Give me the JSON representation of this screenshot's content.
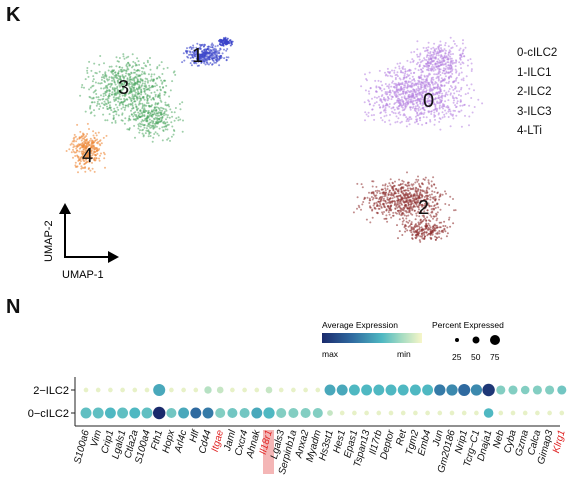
{
  "panel_k": {
    "letter": "K",
    "cluster_labels": [
      "1",
      "3",
      "4",
      "0",
      "2"
    ],
    "legend": [
      "0-cILC2",
      "1-ILC1",
      "2-ILC2",
      "3-ILC3",
      "4-LTi"
    ],
    "axis_x": "UMAP-1",
    "axis_y": "UMAP-2",
    "colors": {
      "c0": "#b57fe0",
      "c1": "#3b44c9",
      "c2": "#8e2f2f",
      "c3": "#4fa862",
      "c4": "#ef8a3c"
    }
  },
  "panel_n": {
    "letter": "N",
    "legend_avg_title": "Average Expression",
    "legend_avg_low": "max",
    "legend_avg_high": "min",
    "legend_pct_title": "Percent Expressed",
    "legend_pct_values": [
      "25",
      "50",
      "75"
    ]
  },
  "chart_data": {
    "type": "dotplot",
    "rows": [
      "2−ILC2",
      "0−cILC2"
    ],
    "genes": [
      "S100a6",
      "Vim",
      "Crip1",
      "Lgals1",
      "Ctla2a",
      "S100a4",
      "Fth1",
      "Hopx",
      "Arl4c",
      "Hlf",
      "Cd44",
      "Itgae",
      "Jaml",
      "Cxcr4",
      "Ahnak",
      "Il18r1",
      "Lgals3",
      "Serpinb1a",
      "Anxa2",
      "Myadm",
      "Hs3st1",
      "Hes1",
      "Epas1",
      "Tspan13",
      "Il17rb",
      "Deptor",
      "Ret",
      "Tgm2",
      "Emb4",
      "Jun",
      "Gm20186",
      "Nrip1",
      "Tcrg−C1",
      "Dnaja1",
      "Neb",
      "Cyba",
      "Gzma",
      "Calca",
      "Gimap3",
      "Klrg1"
    ],
    "highlighted_genes": [
      "Itgae",
      "Klrg1"
    ],
    "boxed_genes": [
      "Il18r1"
    ],
    "highlight_color": "#e02424",
    "pct_expressed": {
      "2−ILC2": [
        5,
        5,
        5,
        5,
        5,
        5,
        70,
        5,
        5,
        5,
        20,
        15,
        5,
        5,
        5,
        15,
        5,
        5,
        5,
        5,
        55,
        55,
        55,
        55,
        55,
        55,
        55,
        55,
        55,
        60,
        60,
        70,
        60,
        75,
        35,
        35,
        30,
        35,
        35,
        35
      ],
      "0−cILC2": [
        55,
        55,
        55,
        55,
        55,
        55,
        75,
        45,
        55,
        55,
        55,
        45,
        45,
        45,
        55,
        60,
        45,
        45,
        45,
        45,
        10,
        5,
        5,
        5,
        5,
        5,
        5,
        5,
        5,
        5,
        5,
        5,
        5,
        40,
        5,
        5,
        5,
        5,
        5,
        5
      ]
    },
    "avg_expression": {
      "2−ILC2": [
        0.05,
        0.05,
        0.05,
        0.05,
        0.05,
        0.05,
        0.55,
        0.05,
        0.05,
        0.05,
        0.2,
        0.15,
        0.05,
        0.05,
        0.05,
        0.15,
        0.05,
        0.05,
        0.05,
        0.05,
        0.55,
        0.55,
        0.5,
        0.5,
        0.5,
        0.5,
        0.5,
        0.5,
        0.5,
        0.7,
        0.65,
        0.75,
        0.65,
        0.95,
        0.35,
        0.35,
        0.35,
        0.35,
        0.35,
        0.4
      ],
      "0−cILC2": [
        0.45,
        0.45,
        0.5,
        0.45,
        0.5,
        0.45,
        1.0,
        0.4,
        0.55,
        0.75,
        0.7,
        0.35,
        0.4,
        0.4,
        0.55,
        0.5,
        0.35,
        0.35,
        0.35,
        0.35,
        0.15,
        0.05,
        0.05,
        0.05,
        0.05,
        0.05,
        0.05,
        0.05,
        0.05,
        0.05,
        0.05,
        0.05,
        0.05,
        0.5,
        0.05,
        0.05,
        0.05,
        0.05,
        0.05,
        0.05
      ]
    },
    "color_scale": [
      "#1a2a6c",
      "#2f6aa0",
      "#4fb8c2",
      "#a6dcc2",
      "#f7f6c8"
    ]
  }
}
